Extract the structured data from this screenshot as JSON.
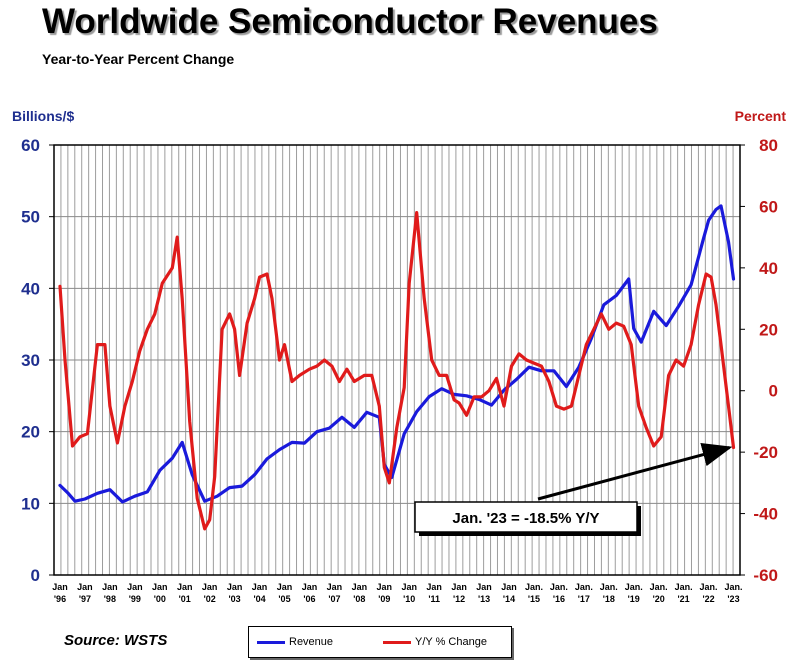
{
  "chart_data": {
    "type": "line",
    "title": "Worldwide Semiconductor Revenues",
    "subtitle": "Year-to-Year Percent Change",
    "ylabel_left": "Billions/$",
    "ylabel_right": "Percent",
    "ylim_left": [
      0,
      60
    ],
    "ylim_right": [
      -60,
      80
    ],
    "yticks_left": [
      "0",
      "10",
      "20",
      "30",
      "40",
      "50",
      "60"
    ],
    "yticks_right": [
      "-60",
      "-40",
      "-20",
      "0",
      "20",
      "40",
      "60",
      "80"
    ],
    "x_tick_labels": [
      [
        "Jan",
        "'96"
      ],
      [
        "Jan",
        "'97"
      ],
      [
        "Jan",
        "'98"
      ],
      [
        "Jan",
        "'99"
      ],
      [
        "Jan",
        "'00"
      ],
      [
        "Jan",
        "'01"
      ],
      [
        "Jan",
        "'02"
      ],
      [
        "Jan",
        "'03"
      ],
      [
        "Jan",
        "'04"
      ],
      [
        "Jan",
        "'05"
      ],
      [
        "Jan",
        "'06"
      ],
      [
        "Jan",
        "'07"
      ],
      [
        "Jan",
        "'08"
      ],
      [
        "Jan",
        "'09"
      ],
      [
        "Jan",
        "'10"
      ],
      [
        "Jan",
        "'11"
      ],
      [
        "Jan",
        "'12"
      ],
      [
        "Jan",
        "'13"
      ],
      [
        "Jan",
        "'14"
      ],
      [
        "Jan.",
        "'15"
      ],
      [
        "Jan.",
        "'16"
      ],
      [
        "Jan.",
        "'17"
      ],
      [
        "Jan.",
        "'18"
      ],
      [
        "Jan.",
        "'19"
      ],
      [
        "Jan.",
        "'20"
      ],
      [
        "Jan.",
        "'21"
      ],
      [
        "Jan.",
        "'22"
      ],
      [
        "Jan.",
        "'23"
      ]
    ],
    "grid": true,
    "series": [
      {
        "name": "Revenue",
        "color": "#1a1adb",
        "axis": "left",
        "x": [
          1996.0,
          1996.3,
          1996.6,
          1997.0,
          1997.5,
          1998.0,
          1998.5,
          1999.0,
          1999.5,
          2000.0,
          2000.5,
          2000.9,
          2001.3,
          2001.8,
          2002.3,
          2002.8,
          2003.3,
          2003.8,
          2004.3,
          2004.8,
          2005.3,
          2005.8,
          2006.3,
          2006.8,
          2007.3,
          2007.8,
          2008.3,
          2008.8,
          2009.0,
          2009.3,
          2009.8,
          2010.3,
          2010.8,
          2011.3,
          2011.8,
          2012.3,
          2012.8,
          2013.3,
          2013.8,
          2014.3,
          2014.8,
          2015.3,
          2015.8,
          2016.3,
          2016.8,
          2017.3,
          2017.8,
          2018.3,
          2018.8,
          2019.0,
          2019.3,
          2019.8,
          2020.3,
          2020.8,
          2021.3,
          2021.8,
          2022.0,
          2022.3,
          2022.5,
          2022.8,
          2023.0
        ],
        "y": [
          12.5,
          11.5,
          10.3,
          10.6,
          11.4,
          11.9,
          10.2,
          11.0,
          11.6,
          14.6,
          16.3,
          18.5,
          14.0,
          10.3,
          11.0,
          12.2,
          12.4,
          14.0,
          16.2,
          17.5,
          18.5,
          18.4,
          20.0,
          20.5,
          22.0,
          20.6,
          22.7,
          22.0,
          15.4,
          13.6,
          19.7,
          22.8,
          24.9,
          26.0,
          25.2,
          25.0,
          24.5,
          23.7,
          25.8,
          27.3,
          29.0,
          28.5,
          28.5,
          26.3,
          29.0,
          33.0,
          37.7,
          39.0,
          41.3,
          34.4,
          32.5,
          36.8,
          34.8,
          37.5,
          40.5,
          47.0,
          49.5,
          51.0,
          51.5,
          46.5,
          41.3
        ]
      },
      {
        "name": "Y/Y % Change",
        "color": "#e01b1b",
        "axis": "right",
        "x": [
          1996.0,
          1996.2,
          1996.5,
          1996.8,
          1997.1,
          1997.5,
          1997.8,
          1998.0,
          1998.3,
          1998.6,
          1998.9,
          1999.2,
          1999.5,
          1999.8,
          2000.1,
          2000.5,
          2000.7,
          2000.9,
          2001.2,
          2001.5,
          2001.8,
          2002.0,
          2002.2,
          2002.5,
          2002.8,
          2003.0,
          2003.2,
          2003.5,
          2003.8,
          2004.0,
          2004.3,
          2004.5,
          2004.8,
          2005.0,
          2005.3,
          2005.6,
          2006.0,
          2006.3,
          2006.6,
          2006.9,
          2007.2,
          2007.5,
          2007.8,
          2008.2,
          2008.5,
          2008.8,
          2009.0,
          2009.2,
          2009.5,
          2009.8,
          2010.0,
          2010.3,
          2010.6,
          2010.9,
          2011.2,
          2011.5,
          2011.8,
          2012.0,
          2012.3,
          2012.6,
          2012.9,
          2013.2,
          2013.5,
          2013.8,
          2014.1,
          2014.4,
          2014.7,
          2015.0,
          2015.3,
          2015.6,
          2015.9,
          2016.2,
          2016.5,
          2016.8,
          2017.1,
          2017.4,
          2017.7,
          2018.0,
          2018.3,
          2018.6,
          2018.9,
          2019.2,
          2019.5,
          2019.8,
          2020.1,
          2020.4,
          2020.7,
          2021.0,
          2021.3,
          2021.6,
          2021.9,
          2022.1,
          2022.3,
          2022.5,
          2022.8,
          2023.0
        ],
        "y": [
          34,
          10,
          -18,
          -15,
          -14,
          15,
          15,
          -5,
          -17,
          -5,
          3,
          13,
          20,
          25,
          35,
          40,
          50,
          30,
          -10,
          -35,
          -45,
          -42,
          -28,
          20,
          25,
          20,
          5,
          22,
          30,
          37,
          38,
          30,
          10,
          15,
          3,
          5,
          7,
          8,
          10,
          8,
          3,
          7,
          3,
          5,
          5,
          -5,
          -25,
          -30,
          -12,
          1,
          35,
          58,
          30,
          10,
          5,
          5,
          -3,
          -4,
          -8,
          -2,
          -2,
          0,
          4,
          -5,
          8,
          12,
          10,
          9,
          8,
          3,
          -5,
          -6,
          -5,
          5,
          15,
          20,
          25,
          20,
          22,
          21,
          15,
          -5,
          -12,
          -18,
          -15,
          5,
          10,
          8,
          15,
          28,
          38,
          37,
          28,
          15,
          -5,
          -18.5
        ]
      }
    ],
    "annotation": "Jan. '23 = -18.5% Y/Y",
    "source": "Source: WSTS",
    "legend": {
      "placement": "bottom-center",
      "items": [
        "Revenue",
        "Y/Y % Change"
      ]
    }
  }
}
